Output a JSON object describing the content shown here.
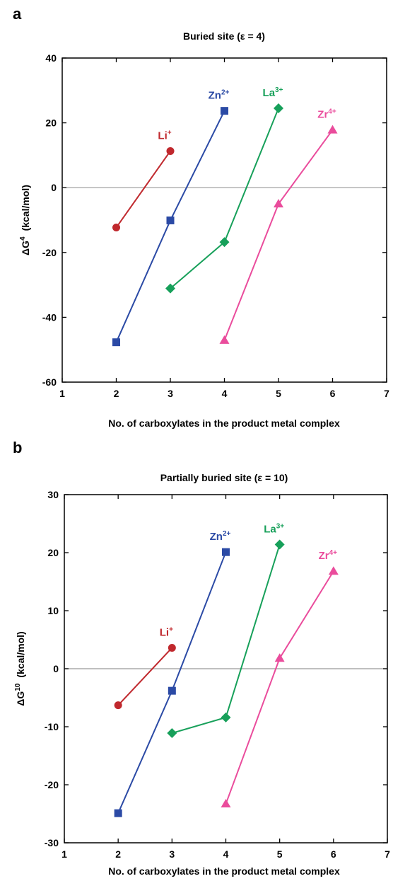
{
  "chart_data": [
    {
      "panel": "a",
      "type": "line",
      "title": "Buried site (ε = 4)",
      "xlabel": "No. of carboxylates in the product metal complex",
      "ylabel_main": "ΔG",
      "ylabel_sup": "4",
      "ylabel_unit": "(kcal/mol)",
      "xlim": [
        1,
        7
      ],
      "ylim": [
        -60,
        40
      ],
      "xticks": [
        1,
        2,
        3,
        4,
        5,
        6,
        7
      ],
      "yticks": [
        -60,
        -40,
        -20,
        0,
        20,
        40
      ],
      "zero_line": true,
      "series": [
        {
          "name": "Li",
          "charge": "+",
          "color": "#c0282d",
          "marker": "circle",
          "x": [
            2,
            3
          ],
          "y": [
            -12.3,
            11.3
          ]
        },
        {
          "name": "Zn",
          "charge": "2+",
          "color": "#2b4aa5",
          "marker": "square",
          "x": [
            2,
            3,
            4
          ],
          "y": [
            -47.7,
            -10.1,
            23.7
          ]
        },
        {
          "name": "La",
          "charge": "3+",
          "color": "#17a05a",
          "marker": "diamond",
          "x": [
            3,
            4,
            5
          ],
          "y": [
            -31.1,
            -16.8,
            24.5
          ]
        },
        {
          "name": "Zr",
          "charge": "4+",
          "color": "#ea4c9c",
          "marker": "triangle",
          "x": [
            4,
            5,
            6
          ],
          "y": [
            -47.1,
            -5.0,
            17.8
          ]
        }
      ]
    },
    {
      "panel": "b",
      "type": "line",
      "title": "Partially buried site (ε = 10)",
      "xlabel": "No. of carboxylates in the product metal complex",
      "ylabel_main": "ΔG",
      "ylabel_sup": "10",
      "ylabel_unit": "(kcal/mol)",
      "xlim": [
        1,
        7
      ],
      "ylim": [
        -30,
        30
      ],
      "xticks": [
        1,
        2,
        3,
        4,
        5,
        6,
        7
      ],
      "yticks": [
        -30,
        -20,
        -10,
        0,
        10,
        20,
        30
      ],
      "zero_line": true,
      "series": [
        {
          "name": "Li",
          "charge": "+",
          "color": "#c0282d",
          "marker": "circle",
          "x": [
            2,
            3
          ],
          "y": [
            -6.3,
            3.6
          ]
        },
        {
          "name": "Zn",
          "charge": "2+",
          "color": "#2b4aa5",
          "marker": "square",
          "x": [
            2,
            3,
            4
          ],
          "y": [
            -24.9,
            -3.8,
            20.1
          ]
        },
        {
          "name": "La",
          "charge": "3+",
          "color": "#17a05a",
          "marker": "diamond",
          "x": [
            3,
            4,
            5
          ],
          "y": [
            -11.1,
            -8.4,
            21.4
          ]
        },
        {
          "name": "Zr",
          "charge": "4+",
          "color": "#ea4c9c",
          "marker": "triangle",
          "x": [
            4,
            5,
            6
          ],
          "y": [
            -23.3,
            1.8,
            16.8
          ]
        }
      ]
    }
  ]
}
